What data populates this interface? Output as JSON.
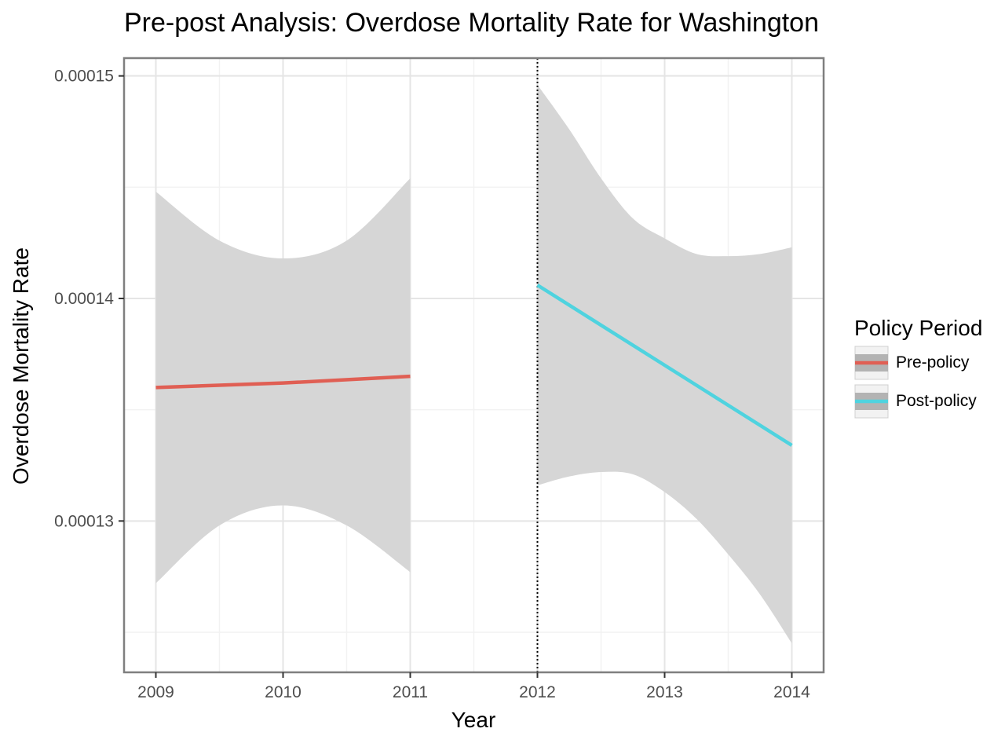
{
  "chart_data": {
    "type": "line",
    "title": "Pre-post Analysis: Overdose Mortality Rate for Washington",
    "xlabel": "Year",
    "ylabel": "Overdose Mortality Rate",
    "xlim": [
      2008.75,
      2014.25
    ],
    "ylim": [
      0.0001232,
      0.0001508
    ],
    "x_ticks": [
      2009,
      2010,
      2011,
      2012,
      2013,
      2014
    ],
    "x_tick_labels": [
      "2009",
      "2010",
      "2011",
      "2012",
      "2013",
      "2014"
    ],
    "y_ticks": [
      0.00013,
      0.00014,
      0.00015
    ],
    "y_tick_labels": [
      "0.00013",
      "0.00014",
      "0.00015"
    ],
    "grid": true,
    "policy_year": 2012,
    "legend": {
      "title": "Policy Period",
      "position": "right"
    },
    "series": [
      {
        "name": "Pre-policy",
        "color": "#e05f54",
        "x": [
          2009,
          2010,
          2011
        ],
        "y": [
          0.000136,
          0.0001362,
          0.0001365
        ],
        "ci": {
          "x": [
            2009,
            2009.5,
            2010,
            2010.5,
            2011
          ],
          "lower": [
            0.0001272,
            0.0001298,
            0.0001307,
            0.0001298,
            0.0001277
          ],
          "upper": [
            0.0001448,
            0.0001426,
            0.0001418,
            0.0001426,
            0.0001454
          ]
        }
      },
      {
        "name": "Post-policy",
        "color": "#4fd3df",
        "x": [
          2012,
          2013,
          2014
        ],
        "y": [
          0.0001406,
          0.000137,
          0.0001334
        ],
        "ci": {
          "x": [
            2012,
            2012.25,
            2012.5,
            2012.75,
            2013,
            2013.25,
            2013.5,
            2013.75,
            2014
          ],
          "lower": [
            0.0001316,
            0.000132,
            0.0001322,
            0.0001321,
            0.0001313,
            0.0001301,
            0.0001285,
            0.0001267,
            0.0001245
          ],
          "upper": [
            0.0001496,
            0.0001476,
            0.0001454,
            0.0001436,
            0.0001427,
            0.000142,
            0.0001419,
            0.000142,
            0.0001423
          ]
        }
      }
    ],
    "ribbon_color": "#d6d6d6"
  }
}
